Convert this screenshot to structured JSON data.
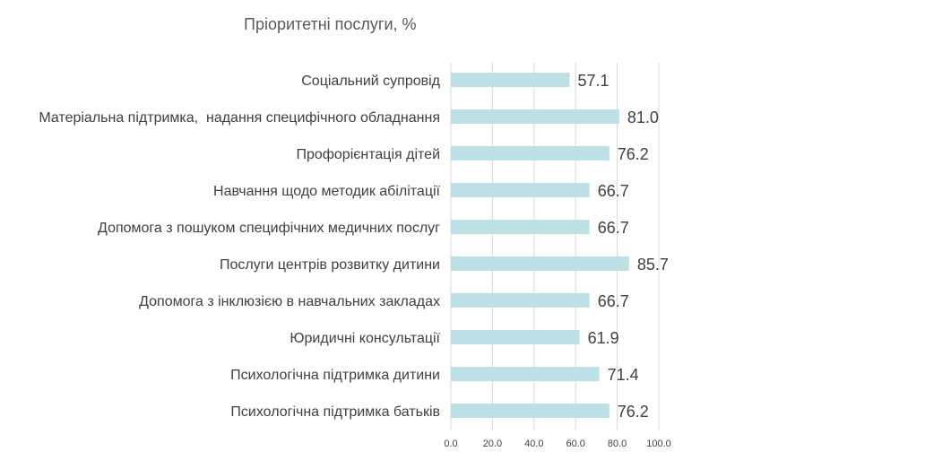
{
  "chart_data": {
    "type": "bar",
    "orientation": "horizontal",
    "title": "Пріоритетні послуги, %",
    "categories": [
      "Соціальний супровід",
      "Матеріальна підтримка,  надання специфічного обладнання",
      "Профорієнтація дітей",
      "Навчання щодо методик абілітації",
      "Допомога з пошуком специфічних медичних послуг",
      "Послуги центрів розвитку дитини",
      "Допомога з інклюзією в навчальних закладах",
      "Юридичні консультації",
      "Психологічна підтримка дитини",
      "Психологічна підтримка батьків"
    ],
    "values": [
      57.1,
      81.0,
      76.2,
      66.7,
      66.7,
      85.7,
      66.7,
      61.9,
      71.4,
      76.2
    ],
    "value_labels": [
      "57.1",
      "81.0",
      "76.2",
      "66.7",
      "66.7",
      "85.7",
      "66.7",
      "61.9",
      "71.4",
      "76.2"
    ],
    "xlim": [
      0,
      100
    ],
    "x_ticks": [
      "0.0",
      "20.0",
      "40.0",
      "60.0",
      "80.0",
      "100.0"
    ],
    "grid": true,
    "legend": "none",
    "colors": {
      "bar": "#bde0e4",
      "grid": "#d9d9d9",
      "title": "#595959",
      "text": "#404040"
    }
  }
}
